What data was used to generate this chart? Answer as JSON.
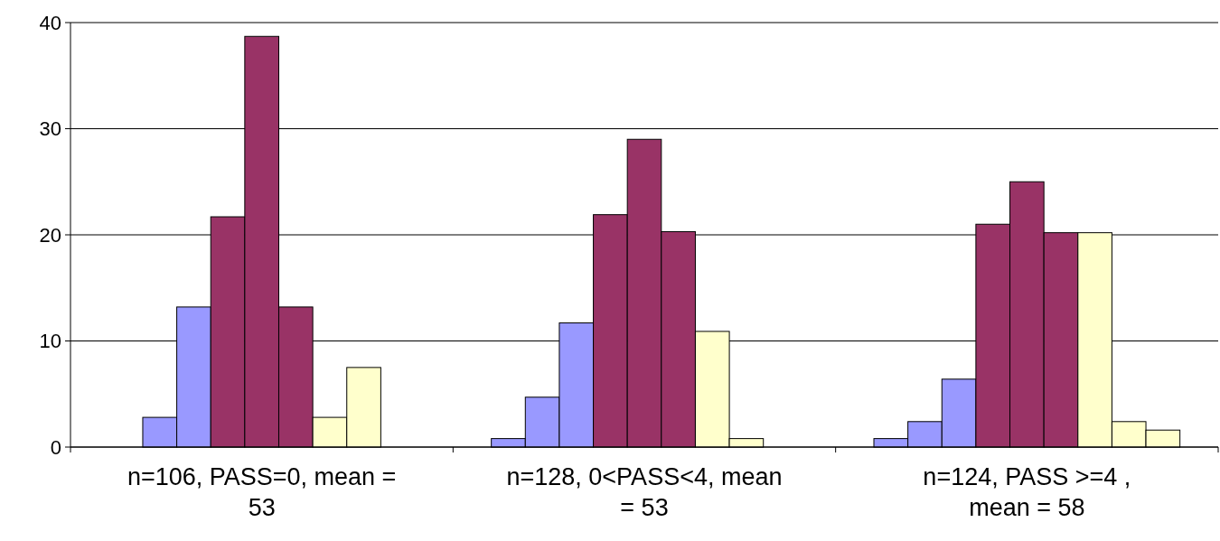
{
  "chart_data": {
    "type": "bar",
    "categories": [
      "n=106, PASS=0, mean = 53",
      "n=128, 0<PASS<4, mean = 53",
      "n=124, PASS >=4 , mean = 58"
    ],
    "series": [
      {
        "color": "#9999ff",
        "values": [
          0,
          0.8,
          0.8
        ]
      },
      {
        "color": "#9999ff",
        "values": [
          2.8,
          4.7,
          2.4
        ]
      },
      {
        "color": "#9999ff",
        "values": [
          13.2,
          11.7,
          6.4
        ]
      },
      {
        "color": "#993366",
        "values": [
          21.7,
          21.9,
          21
        ]
      },
      {
        "color": "#993366",
        "values": [
          38.7,
          29,
          25
        ]
      },
      {
        "color": "#993366",
        "values": [
          13.2,
          20.3,
          20.2
        ]
      },
      {
        "color": "#ffffcc",
        "values": [
          2.8,
          10.9,
          20.2
        ]
      },
      {
        "color": "#ffffcc",
        "values": [
          7.5,
          0.8,
          2.4
        ]
      },
      {
        "color": "#ffffcc",
        "values": [
          0,
          0,
          1.6
        ]
      }
    ],
    "ylim": [
      0,
      40
    ],
    "yticks": [
      0,
      10,
      20,
      30,
      40
    ],
    "grid": "y"
  }
}
